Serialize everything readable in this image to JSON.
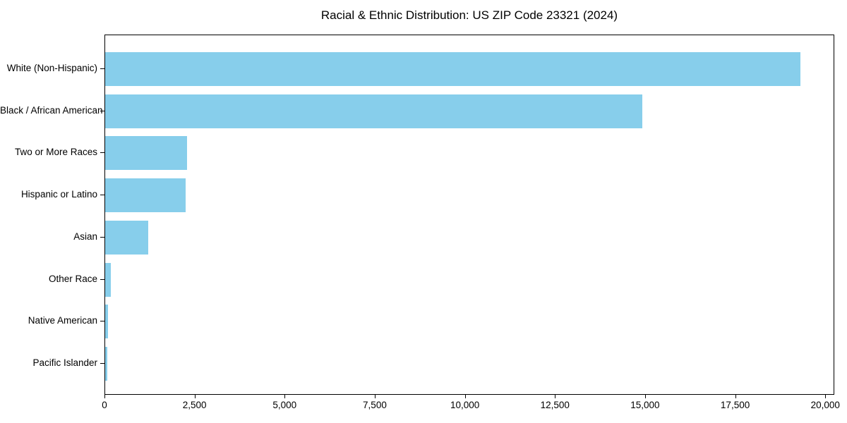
{
  "page": {
    "background": "#ffffff"
  },
  "chart_data": {
    "type": "bar",
    "orientation": "horizontal",
    "title": "Racial & Ethnic Distribution: US ZIP Code 23321 (2024)",
    "categories": [
      "White (Non-Hispanic)",
      "Black / African American",
      "Two or More Races",
      "Hispanic or Latino",
      "Asian",
      "Other Race",
      "Native American",
      "Pacific Islander"
    ],
    "values": [
      19300,
      14900,
      2270,
      2230,
      1190,
      150,
      80,
      60
    ],
    "xlabel": "",
    "ylabel": "",
    "xlim": [
      0,
      20250
    ],
    "xticks": [
      0,
      2500,
      5000,
      7500,
      10000,
      12500,
      15000,
      17500,
      20000
    ],
    "xtick_labels": [
      "0",
      "2,500",
      "5,000",
      "7,500",
      "10,000",
      "12,500",
      "15,000",
      "17,500",
      "20,000"
    ],
    "grid": false,
    "legend": "none",
    "bar_color": "#87CEEB",
    "axis_color": "#000000",
    "text_color": "#000000"
  }
}
